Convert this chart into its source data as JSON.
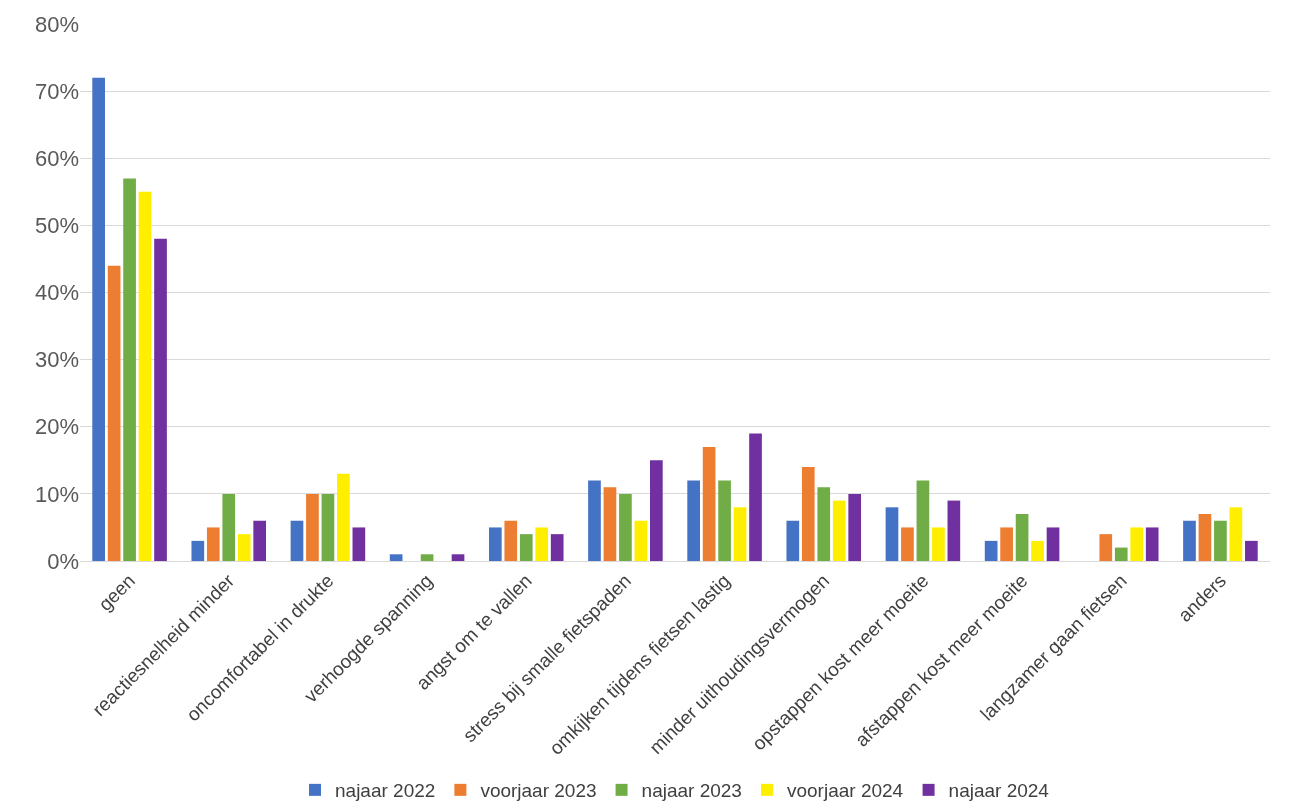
{
  "chart_data": {
    "type": "bar",
    "categories": [
      "geen",
      "reactiesnelheid minder",
      "oncomfortabel in drukte",
      "verhoogde spanning",
      "angst om te vallen",
      "stress bij smalle fietspaden",
      "omkijken tijdens fietsen lastig",
      "minder uithoudingsvermogen",
      "opstappen kost meer moeite",
      "afstappen kost meer moeite",
      "langzamer gaan fietsen",
      "anders"
    ],
    "series": [
      {
        "name": "najaar 2022",
        "color": "#4472c4",
        "values": [
          72,
          3,
          6,
          1,
          5,
          12,
          12,
          6,
          8,
          3,
          0,
          6
        ]
      },
      {
        "name": "voorjaar 2023",
        "color": "#ed7d31",
        "values": [
          44,
          5,
          10,
          0,
          6,
          11,
          17,
          14,
          5,
          5,
          4,
          7
        ]
      },
      {
        "name": "najaar 2023",
        "color": "#70ad47",
        "values": [
          57,
          10,
          10,
          1,
          4,
          10,
          12,
          11,
          12,
          7,
          2,
          6
        ]
      },
      {
        "name": "voorjaar 2024",
        "color": "#ffee00",
        "values": [
          55,
          4,
          13,
          0,
          5,
          6,
          8,
          9,
          5,
          3,
          5,
          8
        ]
      },
      {
        "name": "najaar 2024",
        "color": "#7030a0",
        "values": [
          48,
          6,
          5,
          1,
          4,
          15,
          19,
          10,
          9,
          5,
          5,
          3
        ]
      }
    ],
    "ylim": [
      0,
      80
    ],
    "yticks": [
      {
        "value": 0,
        "label": "0%"
      },
      {
        "value": 10,
        "label": "10%"
      },
      {
        "value": 20,
        "label": "20%"
      },
      {
        "value": 30,
        "label": "30%"
      },
      {
        "value": 40,
        "label": "40%"
      },
      {
        "value": 50,
        "label": "50%"
      },
      {
        "value": 60,
        "label": "60%"
      },
      {
        "value": 70,
        "label": "70%"
      },
      {
        "value": 80,
        "label": "80%"
      }
    ],
    "grid": "y",
    "legend": "bottom"
  }
}
